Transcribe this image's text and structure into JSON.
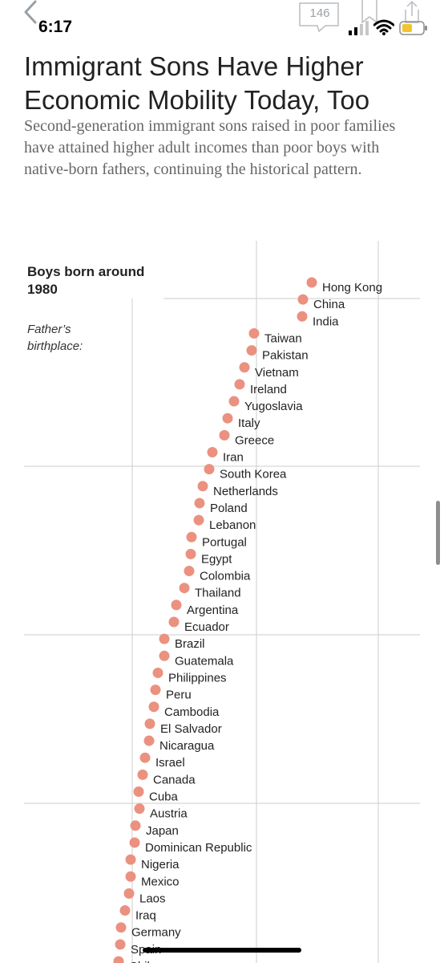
{
  "status_bar": {
    "time": "6:17",
    "comment_count": "146",
    "icons": [
      "back-chevron-icon",
      "comment-icon",
      "bookmark-icon",
      "share-icon",
      "signal-icon",
      "wifi-icon",
      "battery-icon"
    ]
  },
  "article": {
    "headline": "Immigrant Sons Have Higher Economic Mobility Today, Too",
    "dek": "Second-generation immigrant sons raised in poor families have attained higher adult incomes than poor boys with native-born fathers, continuing the historical pattern."
  },
  "chart": {
    "heading": "Boys born around 1980",
    "sublabel": "Father’s birthplace:"
  },
  "colors": {
    "dot": "#eb9180",
    "gridline": "#cccccc"
  },
  "chart_data": {
    "type": "scatter",
    "title": "Boys born around 1980",
    "ylabel": "Father’s birthplace:",
    "xlabel": "",
    "note": "Ranked dot plot; x-axis labels not visible in screenshot (values in arbitrary units read from dot positions)",
    "categories": [
      "Hong Kong",
      "China",
      "India",
      "Taiwan",
      "Pakistan",
      "Vietnam",
      "Ireland",
      "Yugoslavia",
      "Italy",
      "Greece",
      "Iran",
      "South Korea",
      "Netherlands",
      "Poland",
      "Lebanon",
      "Portugal",
      "Egypt",
      "Colombia",
      "Thailand",
      "Argentina",
      "Ecuador",
      "Brazil",
      "Guatemala",
      "Philippines",
      "Peru",
      "Cambodia",
      "El Salvador",
      "Nicaragua",
      "Israel",
      "Canada",
      "Cuba",
      "Austria",
      "Japan",
      "Dominican Republic",
      "Nigeria",
      "Mexico",
      "Laos",
      "Iraq",
      "Germany",
      "Spain",
      "Chile"
    ],
    "values": [
      389,
      378,
      377,
      317,
      314,
      305,
      299,
      292,
      284,
      280,
      265,
      261,
      253,
      249,
      248,
      239,
      238,
      236,
      230,
      220,
      217,
      205,
      205,
      197,
      194,
      192,
      187,
      186,
      181,
      178,
      173,
      174,
      169,
      168,
      163,
      163,
      161,
      156,
      151,
      150,
      148
    ],
    "grid": true
  }
}
